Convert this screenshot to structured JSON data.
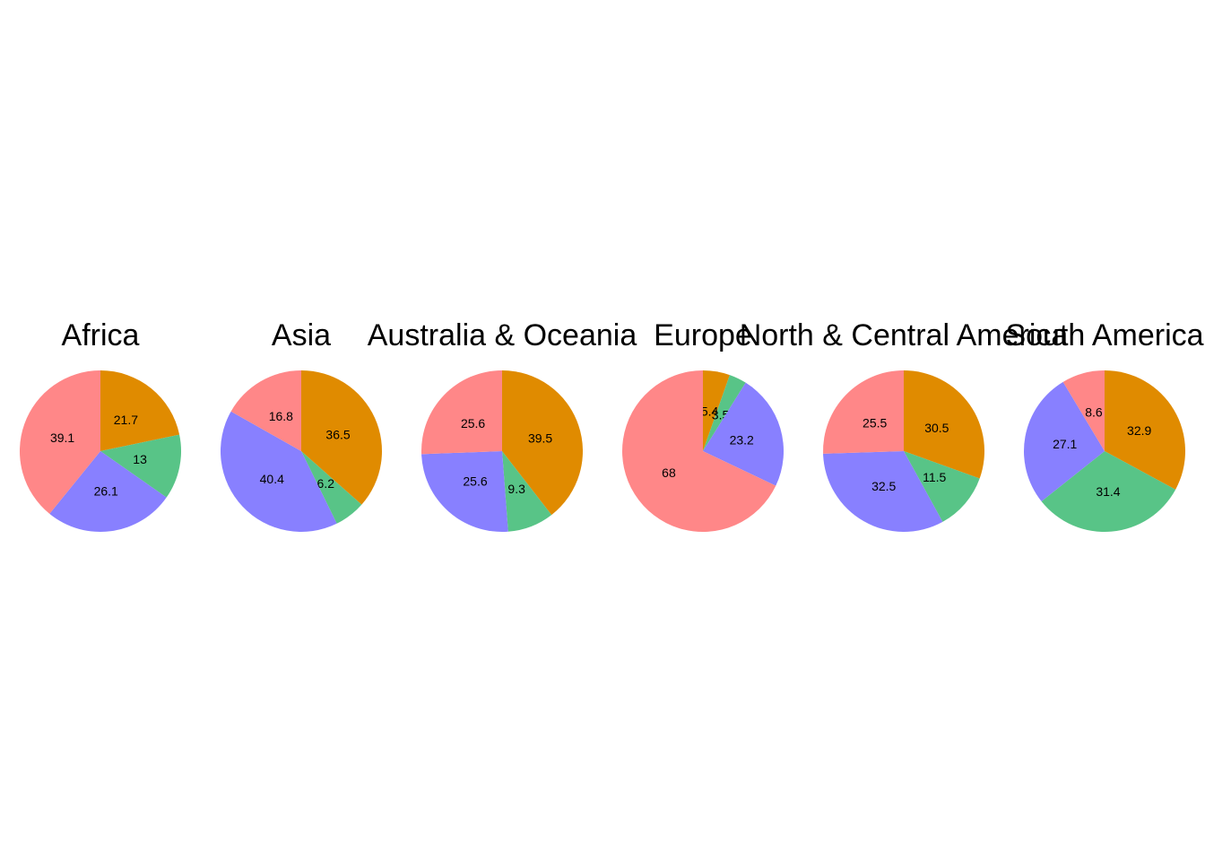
{
  "chart_data": {
    "type": "pie",
    "colors": [
      "#E08B00",
      "#58C487",
      "#8880FF",
      "#FF8788"
    ],
    "start_angle_deg": 0,
    "direction": "clockwise",
    "slice_order_note": "",
    "pies": [
      {
        "title": "Africa",
        "values": [
          21.7,
          13,
          26.1,
          39.1
        ],
        "labels": [
          "21.7",
          "13",
          "26.1",
          "39.1"
        ]
      },
      {
        "title": "Asia",
        "values": [
          36.5,
          6.2,
          40.4,
          16.8
        ],
        "labels": [
          "36.5",
          "6.2",
          "40.4",
          "16.8"
        ]
      },
      {
        "title": "Australia & Oceania",
        "values": [
          39.5,
          9.3,
          25.6,
          25.6
        ],
        "labels": [
          "39.5",
          "9.3",
          "25.6",
          "25.6"
        ]
      },
      {
        "title": "Europe",
        "values": [
          5.4,
          3.5,
          23.2,
          68
        ],
        "labels": [
          "5.4",
          "3.5",
          "23.2",
          "68"
        ]
      },
      {
        "title": "North & Central America",
        "values": [
          30.5,
          11.5,
          32.5,
          25.5
        ],
        "labels": [
          "30.5",
          "11.5",
          "32.5",
          "25.5"
        ]
      },
      {
        "title": "South America",
        "values": [
          32.9,
          31.4,
          27.1,
          8.6
        ],
        "labels": [
          "32.9",
          "31.4",
          "27.1",
          "8.6"
        ]
      }
    ]
  }
}
